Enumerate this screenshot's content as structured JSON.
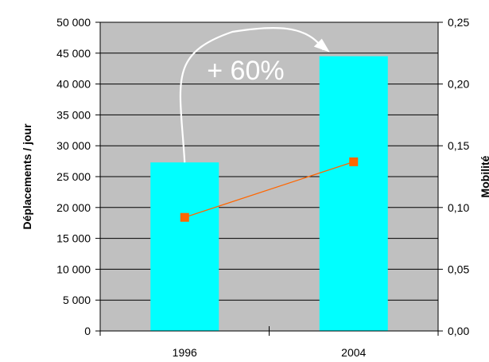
{
  "chart_data": {
    "type": "bar",
    "categories": [
      "1996",
      "2004"
    ],
    "series": [
      {
        "type": "bar",
        "axis": "left",
        "values": [
          27300,
          44500
        ],
        "color": "#00ffff"
      },
      {
        "type": "line",
        "axis": "right",
        "values": [
          0.092,
          0.137
        ],
        "color": "#ff6600",
        "marker": "square"
      }
    ],
    "ylabel": "Déplacements / jour",
    "y2label": "Mobilité",
    "ylim": [
      0,
      50000
    ],
    "y2lim": [
      0,
      0.25
    ],
    "yticks": [
      "0",
      "5 000",
      "10 000",
      "15 000",
      "20 000",
      "25 000",
      "30 000",
      "35 000",
      "40 000",
      "45 000",
      "50 000"
    ],
    "y2ticks": [
      "0,00",
      "0,05",
      "0,10",
      "0,15",
      "0,20",
      "0,25"
    ],
    "plot_background": "#c0c0c0",
    "grid": true,
    "annotation": {
      "text": "+ 60%",
      "from": "1996",
      "to": "2004"
    }
  }
}
